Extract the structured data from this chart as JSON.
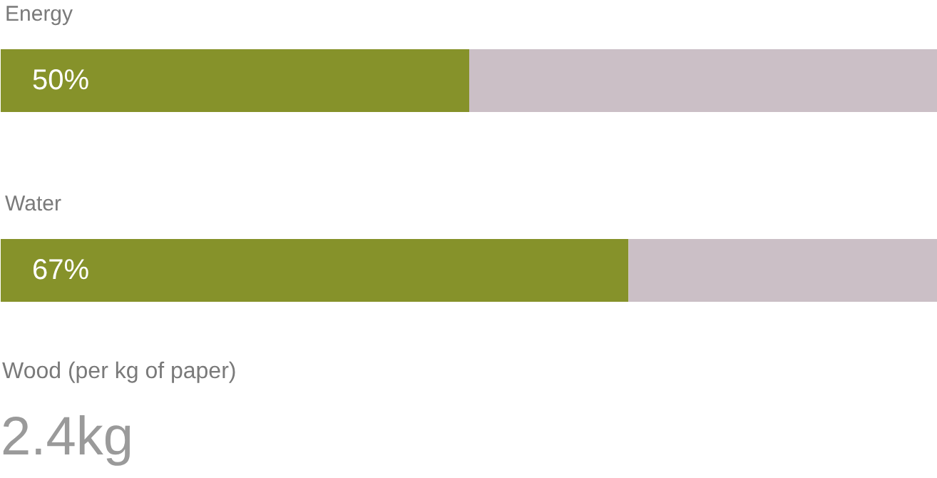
{
  "chart_data": [
    {
      "type": "bar",
      "orientation": "horizontal",
      "stacked": true,
      "categories": [
        "Energy",
        "Water"
      ],
      "xlim": [
        0,
        100
      ],
      "tick_labels": false,
      "grid": false,
      "series": [
        {
          "color": "#86922a",
          "values": [
            50,
            67
          ],
          "value_labels": [
            "50%",
            "67%"
          ]
        },
        {
          "color": "#cbbfc6",
          "values": [
            50,
            33
          ]
        }
      ]
    },
    {
      "type": "other",
      "title": "Wood (per kg of paper)",
      "annotations": [
        "2.4kg"
      ]
    }
  ]
}
